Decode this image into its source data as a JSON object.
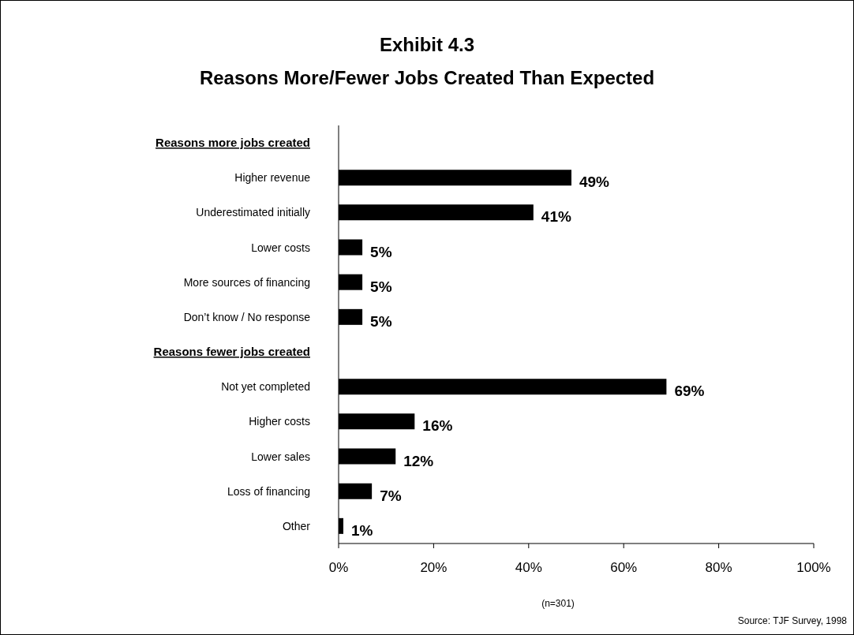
{
  "chart_data": {
    "type": "bar",
    "orientation": "horizontal",
    "title": "Exhibit 4.3",
    "subtitle": "Reasons More/Fewer Jobs Created Than Expected",
    "categories": [
      "Reasons more jobs created",
      "Higher revenue",
      "Underestimated initially",
      "Lower costs",
      "More sources of financing",
      "Don’t know / No response",
      "Reasons fewer jobs created",
      "Not yet completed",
      "Higher costs",
      "Lower sales",
      "Loss of financing",
      "Other"
    ],
    "values": [
      null,
      49,
      41,
      5,
      5,
      5,
      null,
      69,
      16,
      12,
      7,
      1
    ],
    "value_labels": [
      null,
      "49%",
      "41%",
      "5%",
      "5%",
      "5%",
      null,
      "69%",
      "16%",
      "12%",
      "7%",
      "1%"
    ],
    "color": "#000000",
    "xlim": [
      0,
      100
    ],
    "xticks": [
      {
        "value": 0,
        "label": "0%"
      },
      {
        "value": 20,
        "label": "20%"
      },
      {
        "value": 40,
        "label": "40%"
      },
      {
        "value": 60,
        "label": "60%"
      },
      {
        "value": 80,
        "label": "80%"
      },
      {
        "value": 100,
        "label": "100%"
      }
    ],
    "grid": false,
    "annotations": [
      "(n=301)",
      "Source: TJF Survey, 1998"
    ]
  }
}
